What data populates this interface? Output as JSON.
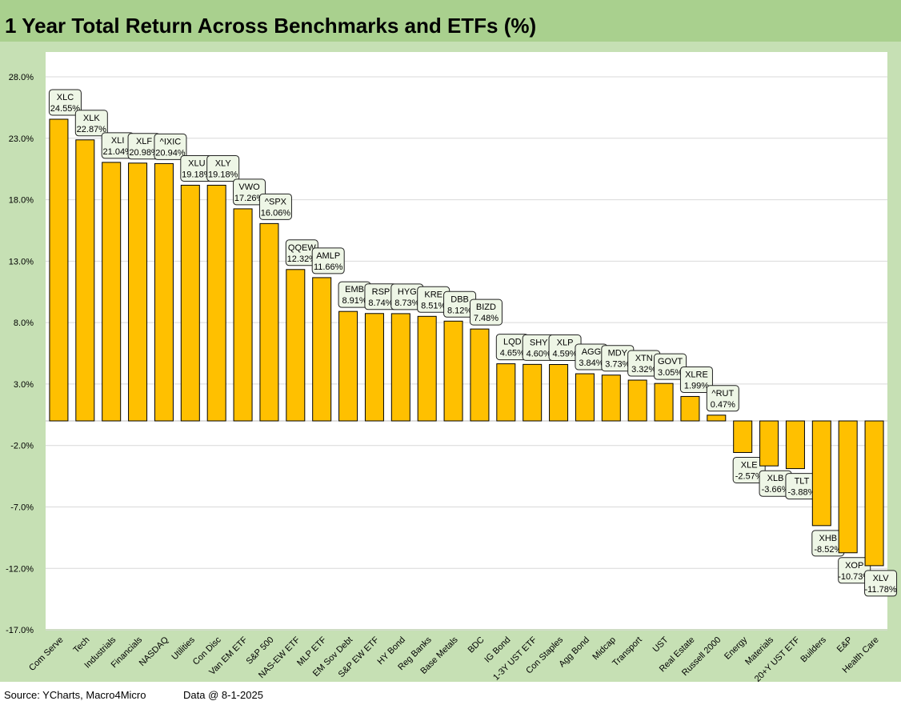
{
  "title": "1 Year Total Return Across Benchmarks and ETFs (%)",
  "footer": {
    "source": "Source: YCharts, Macro4Micro",
    "data_date": "Data @ 8-1-2025"
  },
  "colors": {
    "title_bg": "#a9d08e",
    "chart_bg": "#c6e0b4",
    "plot_bg": "#ffffff",
    "bar_fill": "#ffc000",
    "bar_stroke": "#000000",
    "label_bg": "#eef6e6"
  },
  "chart_data": {
    "type": "bar",
    "title": "1 Year Total Return Across Benchmarks and ETFs (%)",
    "ylim": [
      -17,
      30
    ],
    "y_ticks": [
      28,
      23,
      18,
      13,
      8,
      3,
      -2,
      -7,
      -12,
      -17
    ],
    "y_tick_labels": [
      "28.0%",
      "23.0%",
      "18.0%",
      "13.0%",
      "8.0%",
      "3.0%",
      "-2.0%",
      "-7.0%",
      "-12.0%",
      "-17.0%"
    ],
    "grid": true,
    "categories": [
      "Com Serve",
      "Tech",
      "Industrials",
      "Financials",
      "NASDAQ",
      "Utilities",
      "Con Disc",
      "Van EM ETF",
      "S&P 500",
      "NAS-EW ETF",
      "MLP ETF",
      "EM Sov Debt",
      "S&P EW ETF",
      "HY Bond",
      "Reg Banks",
      "Base Metals",
      "BDC",
      "IG Bond",
      "1-3Y UST ETF",
      "Con Staples",
      "Agg Bond",
      "Midcap",
      "Transport",
      "UST",
      "Real Estate",
      "Russell 2000",
      "Energy",
      "Materials",
      "20+Y UST ETF",
      "Builders",
      "E&P",
      "Health Care"
    ],
    "tickers": [
      "XLC",
      "XLK",
      "XLI",
      "XLF",
      "^IXIC",
      "XLU",
      "XLY",
      "VWO",
      "^SPX",
      "QQEW",
      "AMLP",
      "EMB",
      "RSP",
      "HYG",
      "KRE",
      "DBB",
      "BIZD",
      "LQD",
      "SHY",
      "XLP",
      "AGG",
      "MDY",
      "XTN",
      "GOVT",
      "XLRE",
      "^RUT",
      "XLE",
      "XLB",
      "TLT",
      "XHB",
      "XOP",
      "XLV"
    ],
    "values": [
      24.55,
      22.87,
      21.04,
      20.98,
      20.94,
      19.18,
      19.18,
      17.26,
      16.06,
      12.32,
      11.66,
      8.91,
      8.74,
      8.73,
      8.51,
      8.12,
      7.48,
      4.65,
      4.6,
      4.59,
      3.84,
      3.73,
      3.32,
      3.05,
      1.99,
      0.47,
      -2.57,
      -3.66,
      -3.88,
      -8.52,
      -10.73,
      -11.78
    ],
    "value_labels": [
      "24.55%",
      "22.87%",
      "21.04%",
      "20.98%",
      "20.94%",
      "19.18%",
      "19.18%",
      "17.26%",
      "16.06%",
      "12.32%",
      "11.66%",
      "8.91%",
      "8.74%",
      "8.73%",
      "8.51%",
      "8.12%",
      "7.48%",
      "4.65%",
      "4.60%",
      "4.59%",
      "3.84%",
      "3.73%",
      "3.32%",
      "3.05%",
      "1.99%",
      "0.47%",
      "-2.57%",
      "-3.66%",
      "-3.88%",
      "-8.52%",
      "-10.73%",
      "-11.78%"
    ]
  }
}
